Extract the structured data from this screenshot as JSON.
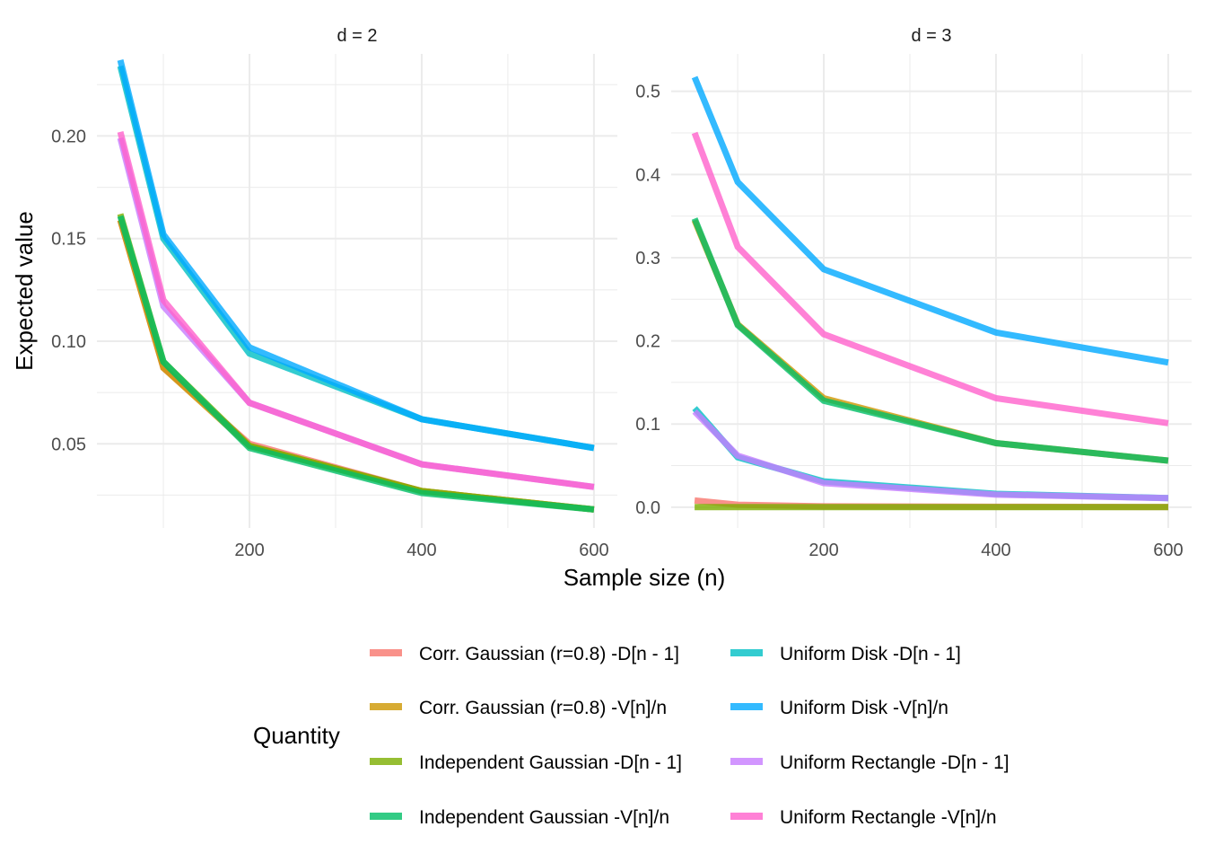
{
  "chart_data": {
    "type": "line",
    "xlabel": "Sample size (n)",
    "ylabel": "Expected value",
    "legend_title": "Quantity",
    "legend_position": "bottom",
    "grid": true,
    "x": [
      50,
      100,
      200,
      400,
      600
    ],
    "series_styles": [
      {
        "name": "Corr. Gaussian (r=0.8) -D[n - 1]",
        "color": "#F8766D"
      },
      {
        "name": "Corr. Gaussian (r=0.8) -V[n]/n",
        "color": "#CD9600"
      },
      {
        "name": "Independent Gaussian -D[n - 1]",
        "color": "#7CAE00"
      },
      {
        "name": "Independent Gaussian -V[n]/n",
        "color": "#00BE67"
      },
      {
        "name": "Uniform Disk -D[n - 1]",
        "color": "#00BFC4"
      },
      {
        "name": "Uniform Disk -V[n]/n",
        "color": "#00A9FF"
      },
      {
        "name": "Uniform Rectangle -D[n - 1]",
        "color": "#C77CFF"
      },
      {
        "name": "Uniform Rectangle -V[n]/n",
        "color": "#FF61CC"
      }
    ],
    "panels": [
      {
        "title": "d = 2",
        "xlim": [
          50,
          600
        ],
        "ylim": [
          0.009,
          0.24
        ],
        "xticks": [
          200,
          400,
          600
        ],
        "xtick_labels": [
          "200",
          "400",
          "600"
        ],
        "xminor": [
          100,
          300,
          500
        ],
        "yticks": [
          0.05,
          0.1,
          0.15,
          0.2
        ],
        "ytick_labels": [
          "0.05",
          "0.10",
          "0.15",
          "0.20"
        ],
        "yminor": [
          0.025,
          0.075,
          0.125,
          0.175,
          0.225
        ],
        "series": [
          {
            "name": "Corr. Gaussian (r=0.8) -D[n - 1]",
            "values": [
              0.159,
              0.087,
              0.05,
              0.027,
              0.018
            ]
          },
          {
            "name": "Corr. Gaussian (r=0.8) -V[n]/n",
            "values": [
              0.159,
              0.087,
              0.049,
              0.027,
              0.018
            ]
          },
          {
            "name": "Independent Gaussian -D[n - 1]",
            "values": [
              0.162,
              0.09,
              0.049,
              0.027,
              0.018
            ]
          },
          {
            "name": "Independent Gaussian -V[n]/n",
            "values": [
              0.161,
              0.09,
              0.048,
              0.026,
              0.018
            ]
          },
          {
            "name": "Uniform Disk -D[n - 1]",
            "values": [
              0.234,
              0.15,
              0.094,
              0.062,
              0.048
            ]
          },
          {
            "name": "Uniform Disk -V[n]/n",
            "values": [
              0.237,
              0.152,
              0.097,
              0.062,
              0.048
            ]
          },
          {
            "name": "Uniform Rectangle -D[n - 1]",
            "values": [
              0.199,
              0.117,
              0.07,
              0.04,
              0.029
            ]
          },
          {
            "name": "Uniform Rectangle -V[n]/n",
            "values": [
              0.202,
              0.12,
              0.07,
              0.04,
              0.029
            ]
          }
        ]
      },
      {
        "title": "d = 3",
        "xlim": [
          50,
          600
        ],
        "ylim": [
          -0.025,
          0.545
        ],
        "xticks": [
          200,
          400,
          600
        ],
        "xtick_labels": [
          "200",
          "400",
          "600"
        ],
        "xminor": [
          100,
          300,
          500
        ],
        "yticks": [
          0.0,
          0.1,
          0.2,
          0.3,
          0.4,
          0.5
        ],
        "ytick_labels": [
          "0.0",
          "0.1",
          "0.2",
          "0.3",
          "0.4",
          "0.5"
        ],
        "yminor": [
          0.05,
          0.15,
          0.25,
          0.35,
          0.45
        ],
        "series": [
          {
            "name": "Corr. Gaussian (r=0.8) -D[n - 1]",
            "values": [
              0.008,
              0.003,
              0.001,
              0.0005,
              0.0003
            ]
          },
          {
            "name": "Corr. Gaussian (r=0.8) -V[n]/n",
            "values": [
              0.345,
              0.22,
              0.131,
              0.077,
              0.056
            ]
          },
          {
            "name": "Independent Gaussian -D[n - 1]",
            "values": [
              0.0,
              0.0,
              0.0,
              0.0,
              0.0
            ]
          },
          {
            "name": "Independent Gaussian -V[n]/n",
            "values": [
              0.347,
              0.219,
              0.128,
              0.077,
              0.056
            ]
          },
          {
            "name": "Uniform Disk -D[n - 1]",
            "values": [
              0.119,
              0.06,
              0.031,
              0.016,
              0.011
            ]
          },
          {
            "name": "Uniform Disk -V[n]/n",
            "values": [
              0.517,
              0.391,
              0.286,
              0.21,
              0.174
            ]
          },
          {
            "name": "Uniform Rectangle -D[n - 1]",
            "values": [
              0.115,
              0.062,
              0.029,
              0.015,
              0.011
            ]
          },
          {
            "name": "Uniform Rectangle -V[n]/n",
            "values": [
              0.45,
              0.313,
              0.208,
              0.131,
              0.101
            ]
          }
        ]
      }
    ]
  }
}
